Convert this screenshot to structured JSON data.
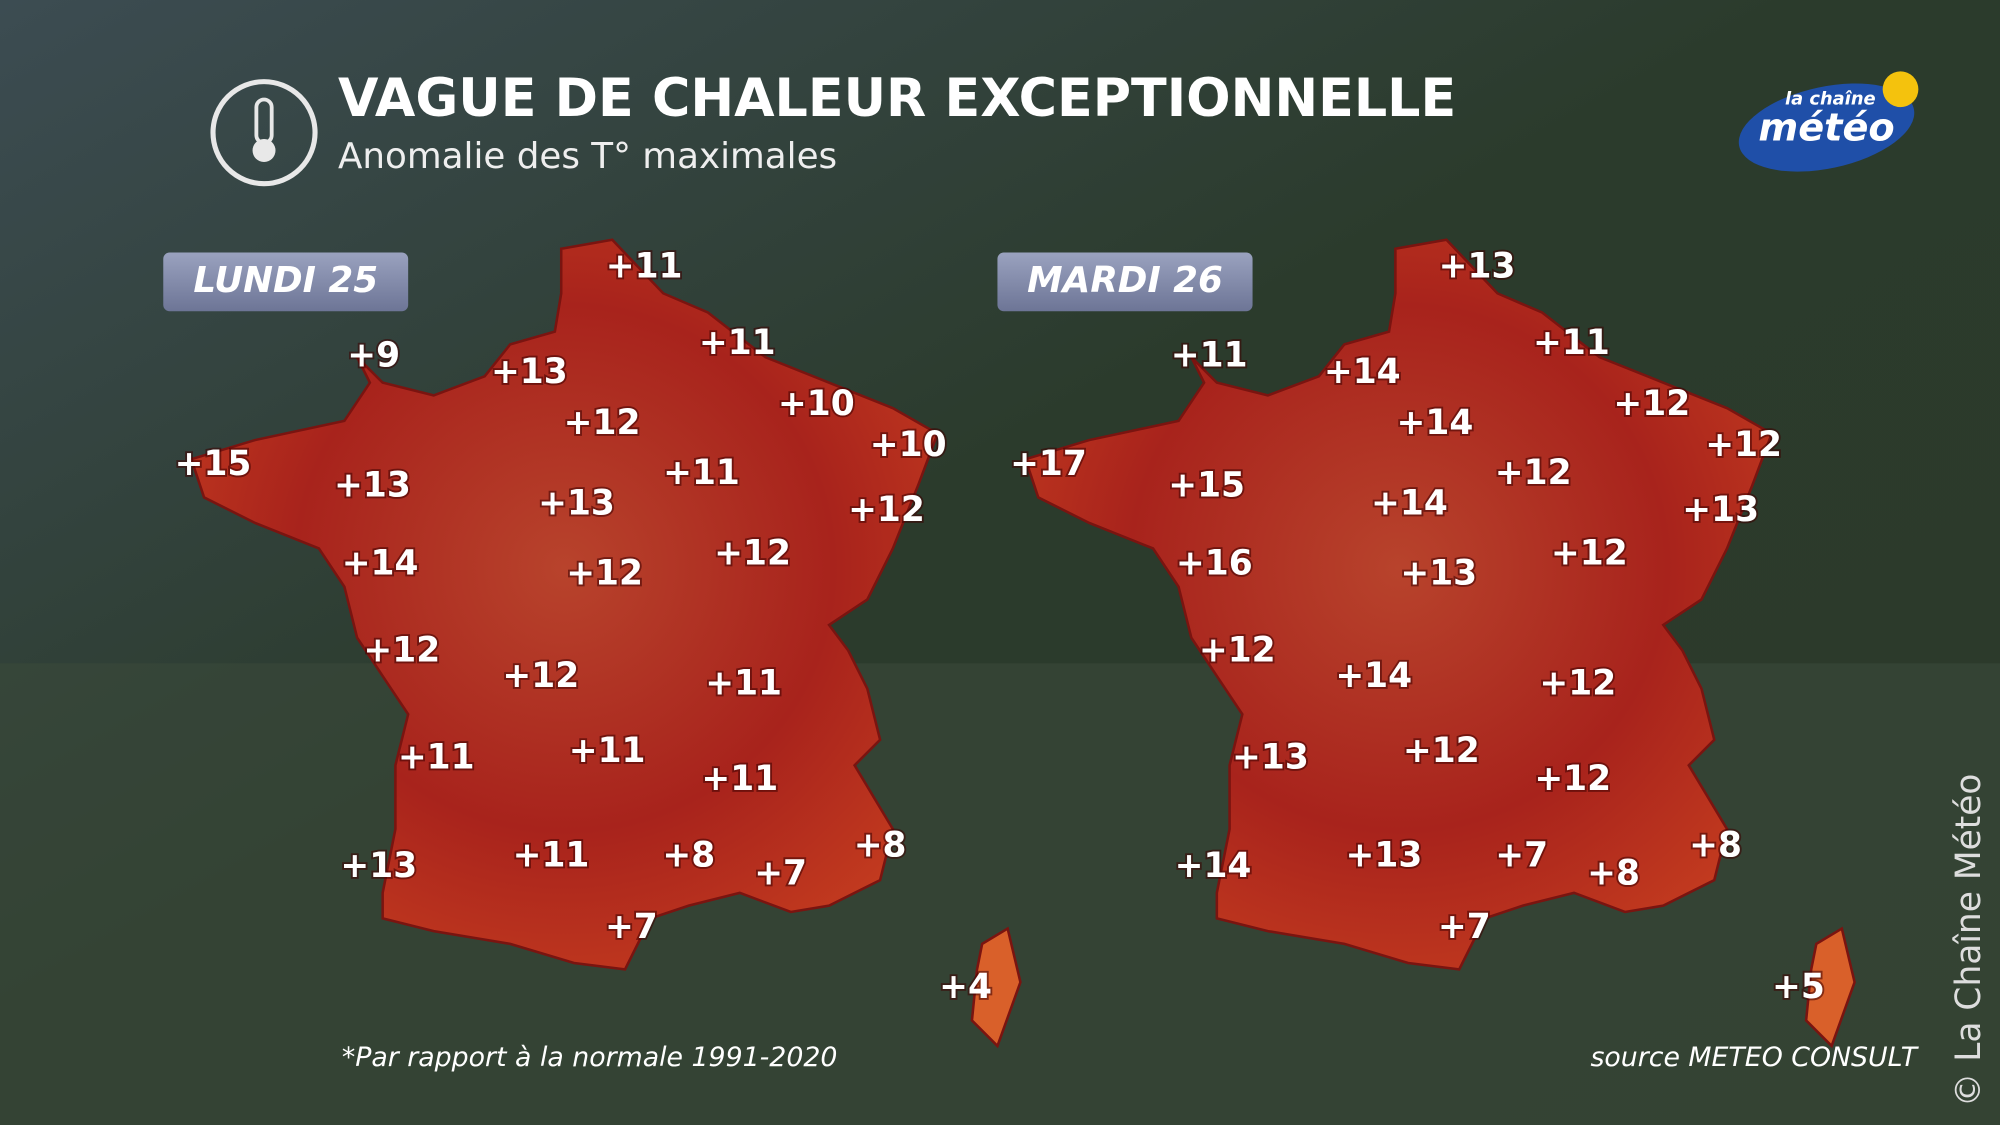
{
  "header": {
    "title": "VAGUE DE CHALEUR EXCEPTIONNELLE",
    "subtitle": "Anomalie des T° maximales"
  },
  "logo": {
    "line1": "la chaîne",
    "line2": "météo"
  },
  "maps": [
    {
      "day": "LUNDI 25",
      "anomalies": [
        "+11",
        "+9",
        "+13",
        "+11",
        "+10",
        "+12",
        "+10",
        "+15",
        "+13",
        "+11",
        "+13",
        "+12",
        "+14",
        "+12",
        "+12",
        "+12",
        "+12",
        "+11",
        "+11",
        "+11",
        "+11",
        "+13",
        "+11",
        "+8",
        "+7",
        "+8",
        "+7",
        "+4"
      ]
    },
    {
      "day": "MARDI 26",
      "anomalies": [
        "+13",
        "+11",
        "+14",
        "+11",
        "+12",
        "+14",
        "+12",
        "+17",
        "+15",
        "+12",
        "+14",
        "+13",
        "+16",
        "+12",
        "+13",
        "+12",
        "+14",
        "+12",
        "+13",
        "+12",
        "+12",
        "+14",
        "+13",
        "+7",
        "+8",
        "+8",
        "+7",
        "+5"
      ]
    }
  ],
  "footnote": "*Par rapport à la normale 1991-2020",
  "source": "source METEO CONSULT",
  "copyright": "© La Chaîne Météo"
}
